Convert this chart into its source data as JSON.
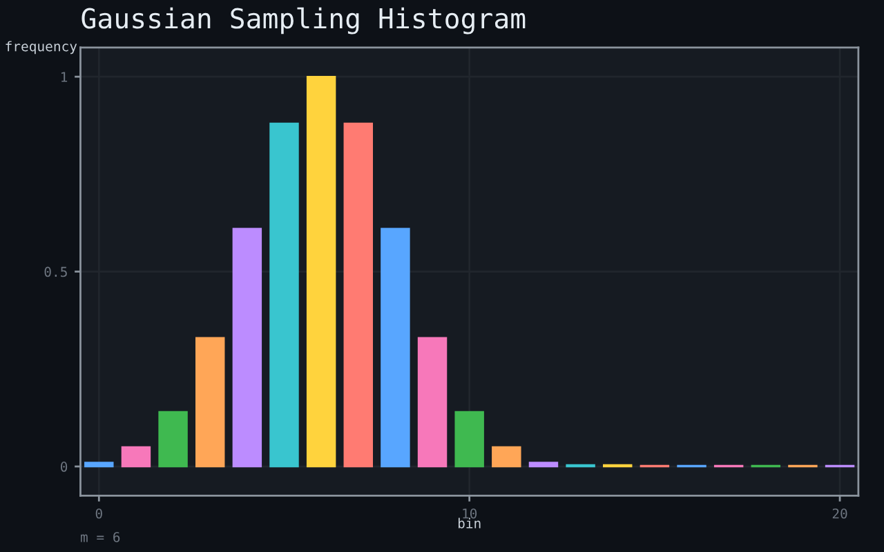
{
  "chart_data": {
    "type": "bar",
    "title": "Gaussian Sampling Histogram",
    "xlabel": "bin",
    "ylabel": "frequency",
    "annotations": [
      "m = 6"
    ],
    "x": [
      0,
      1,
      2,
      3,
      4,
      5,
      6,
      7,
      8,
      9,
      10,
      11,
      12,
      13,
      14,
      15,
      16,
      17,
      18,
      19,
      20
    ],
    "values": [
      0.01,
      0.05,
      0.14,
      0.33,
      0.61,
      0.88,
      1,
      0.88,
      0.61,
      0.33,
      0.14,
      0.05,
      0.01,
      0.004,
      0.004,
      0.002,
      0.002,
      0.002,
      0.002,
      0.002,
      0.002
    ],
    "colors": [
      "#58a6ff",
      "#f778ba",
      "#3fb950",
      "#ffa657",
      "#bc8cff",
      "#39c5cf",
      "#ffd33d",
      "#ff7b72",
      "#58a6ff",
      "#f778ba",
      "#3fb950",
      "#ffa657",
      "#bc8cff",
      "#39c5cf",
      "#ffd33d",
      "#ff7b72",
      "#58a6ff",
      "#f778ba",
      "#3fb950",
      "#ffa657",
      "#bc8cff"
    ],
    "xlim": [
      -0.5,
      20.5
    ],
    "xticks": [
      0,
      10,
      20
    ],
    "ylim": [
      -0.075,
      1.075
    ],
    "yticks": [
      0,
      0.5,
      1
    ],
    "grid": true
  }
}
